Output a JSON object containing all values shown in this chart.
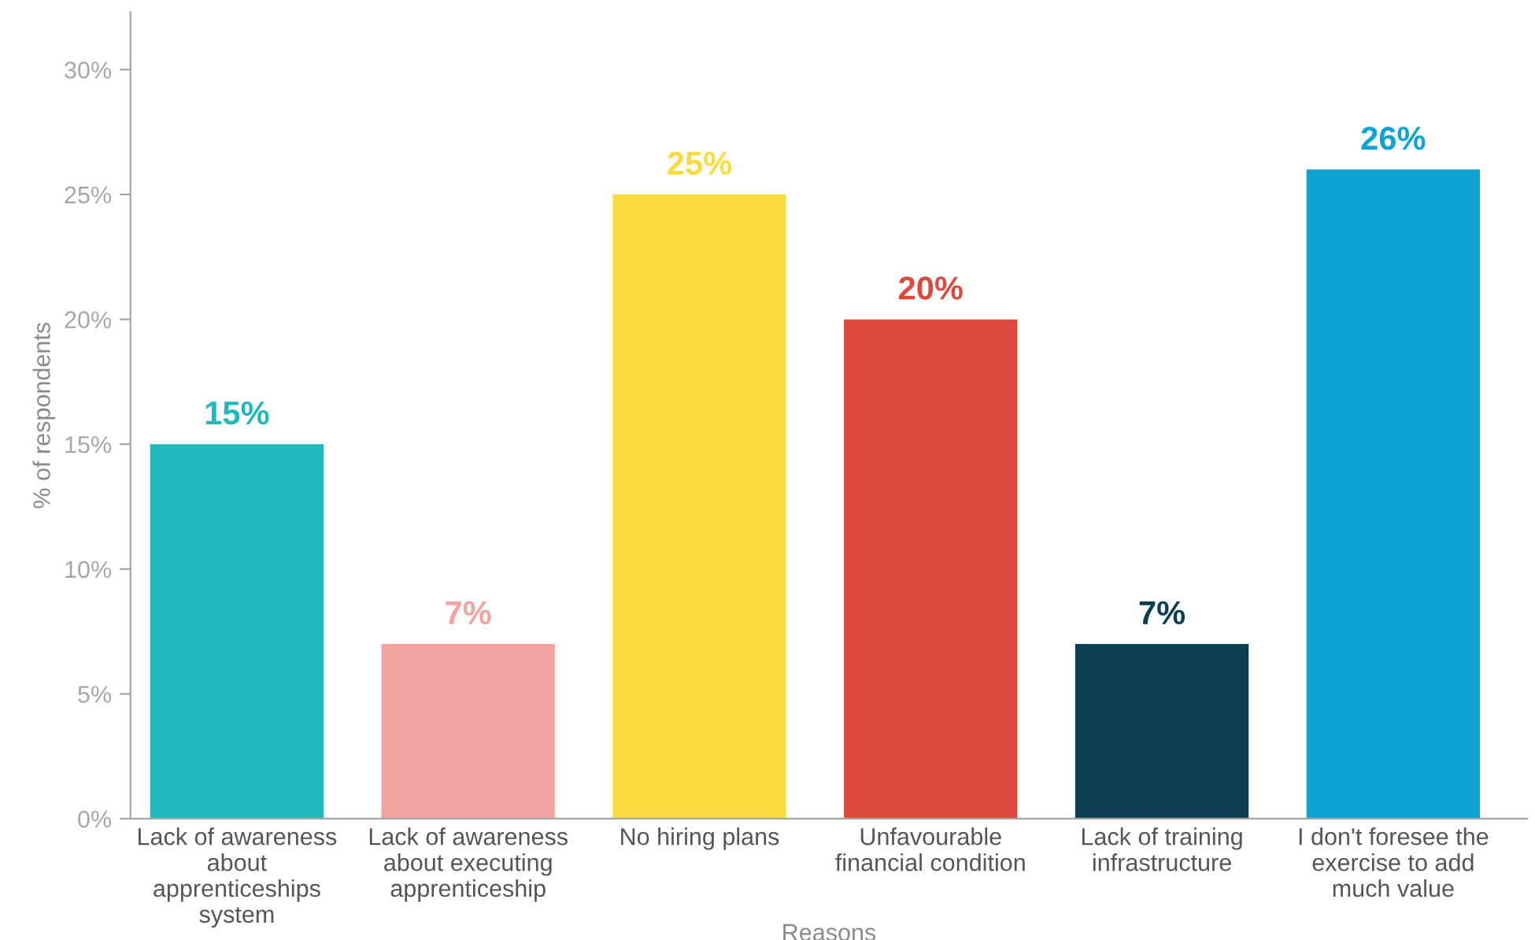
{
  "chart_data": {
    "type": "bar",
    "categories": [
      "Lack of awareness\nabout\napprenticeships\nsystem",
      "Lack of awareness\nabout executing\napprenticeship",
      "No hiring plans",
      "Unfavourable\nfinancial condition",
      "Lack of training\ninfrastructure",
      "I don't foresee the\nexercise to add\nmuch value"
    ],
    "values": [
      15,
      7,
      25,
      20,
      7,
      26
    ],
    "value_labels": [
      "15%",
      "7%",
      "25%",
      "20%",
      "7%",
      "26%"
    ],
    "colors": [
      "#1fb8bd",
      "#f2a3a0",
      "#fbdb3f",
      "#dc4a3d",
      "#0b3e52",
      "#0ea3d3"
    ],
    "xlabel": "Reasons",
    "ylabel": "% of respondents",
    "ylim": [
      0,
      32.3
    ],
    "yticks": [
      {
        "value": 0,
        "label": "0%"
      },
      {
        "value": 5,
        "label": "5%"
      },
      {
        "value": 10,
        "label": "10%"
      },
      {
        "value": 15,
        "label": "15%"
      },
      {
        "value": 20,
        "label": "20%"
      },
      {
        "value": 25,
        "label": "25%"
      },
      {
        "value": 30,
        "label": "30%"
      }
    ],
    "grid": false,
    "legend": false
  }
}
